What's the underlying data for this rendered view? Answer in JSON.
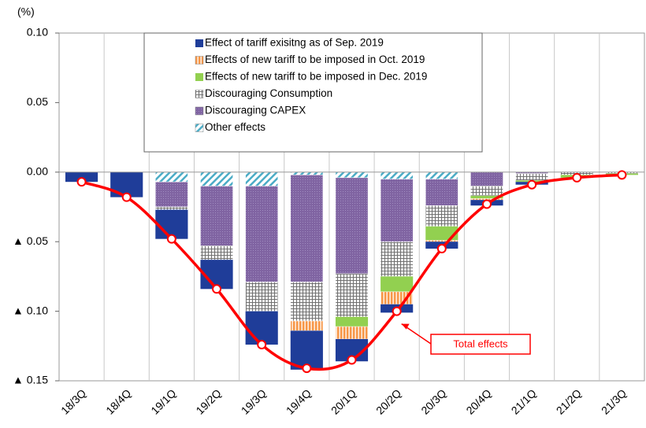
{
  "chart_data": {
    "type": "bar",
    "stacked": true,
    "unit_label": "(%)",
    "categories": [
      "18/3Q",
      "18/4Q",
      "19/1Q",
      "19/2Q",
      "19/3Q",
      "19/4Q",
      "20/1Q",
      "20/2Q",
      "20/3Q",
      "20/4Q",
      "21/1Q",
      "21/2Q",
      "21/3Q"
    ],
    "series": [
      {
        "name": "Other effects",
        "color": "#4bacc6",
        "pattern": "hatch",
        "values": [
          0,
          0,
          -0.007,
          -0.01,
          -0.01,
          -0.002,
          -0.004,
          -0.005,
          -0.005,
          0,
          0,
          0,
          0
        ]
      },
      {
        "name": "Discouraging CAPEX",
        "color": "#8064a2",
        "pattern": "dots",
        "values": [
          0,
          0,
          -0.018,
          -0.043,
          -0.069,
          -0.077,
          -0.069,
          -0.045,
          -0.019,
          -0.01,
          -0.001,
          0,
          0
        ]
      },
      {
        "name": "Discouraging Consumption",
        "color": "#808080",
        "pattern": "grid",
        "values": [
          0,
          0,
          -0.002,
          -0.01,
          -0.021,
          -0.028,
          -0.031,
          -0.025,
          -0.015,
          -0.007,
          -0.005,
          -0.002,
          -0.001
        ]
      },
      {
        "name": "Effects of new tariff to be imposed in Dec. 2019",
        "color": "#92d050",
        "pattern": "solid",
        "values": [
          0,
          0,
          0,
          0,
          0,
          0,
          -0.007,
          -0.011,
          -0.01,
          -0.002,
          -0.001,
          -0.002,
          -0.001
        ]
      },
      {
        "name": "Effects of new tariff to be imposed in Oct. 2019",
        "color": "#f79646",
        "pattern": "vlines",
        "values": [
          0,
          0,
          0,
          0,
          0,
          -0.007,
          -0.009,
          -0.009,
          -0.001,
          -0.001,
          0,
          0,
          0
        ]
      },
      {
        "name": "Effect of tariff exisitng  as of Sep. 2019",
        "color": "#1f3d99",
        "pattern": "solid",
        "values": [
          -0.007,
          -0.018,
          -0.021,
          -0.021,
          -0.024,
          -0.028,
          -0.016,
          -0.006,
          -0.005,
          -0.004,
          -0.002,
          0,
          0
        ]
      }
    ],
    "legend_order": [
      5,
      4,
      3,
      2,
      1,
      0
    ],
    "total": {
      "color": "#ff0000",
      "values": [
        -0.007,
        -0.018,
        -0.048,
        -0.084,
        -0.124,
        -0.141,
        -0.135,
        -0.1,
        -0.055,
        -0.023,
        -0.009,
        -0.004,
        -0.002
      ]
    },
    "annotation": "Total effects",
    "annotation_index": 7,
    "ylim": [
      -0.15,
      0.1
    ],
    "yticks": [
      {
        "value": 0.1,
        "label": "0.10"
      },
      {
        "value": 0.05,
        "label": "0.05"
      },
      {
        "value": 0,
        "label": "0.00"
      },
      {
        "value": -0.05,
        "label": "▲ 0.05"
      },
      {
        "value": -0.1,
        "label": "▲ 0.10"
      },
      {
        "value": -0.15,
        "label": "▲ 0.15"
      }
    ]
  }
}
